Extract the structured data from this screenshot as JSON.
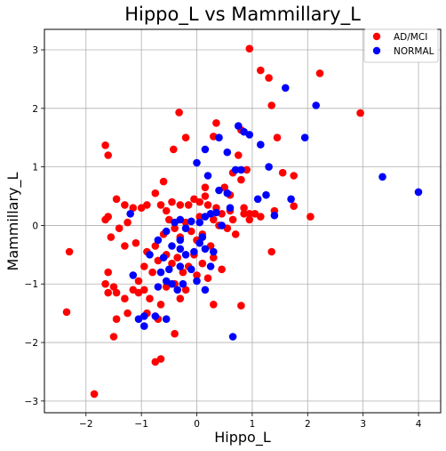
{
  "chart_data": {
    "type": "scatter",
    "title": "Hippo_L vs Mammillary_L",
    "xlabel": "Hippo_L",
    "ylabel": "Mammillary_L",
    "xlim": [
      -2.75,
      4.4
    ],
    "ylim": [
      -3.2,
      3.35
    ],
    "xticks": [
      -2,
      -1,
      0,
      1,
      2,
      3,
      4
    ],
    "yticks": [
      -3,
      -2,
      -1,
      0,
      1,
      2,
      3
    ],
    "grid": true,
    "legend_position": "top-right",
    "series": [
      {
        "name": "AD/MCI",
        "color": "#ff0000",
        "points": [
          [
            0.95,
            3.02
          ],
          [
            1.15,
            2.65
          ],
          [
            1.3,
            2.52
          ],
          [
            2.22,
            2.6
          ],
          [
            1.35,
            2.05
          ],
          [
            2.95,
            1.92
          ],
          [
            -0.32,
            1.93
          ],
          [
            0.35,
            1.75
          ],
          [
            -0.2,
            1.5
          ],
          [
            0.8,
            1.63
          ],
          [
            1.45,
            1.5
          ],
          [
            -1.65,
            1.37
          ],
          [
            -0.42,
            1.3
          ],
          [
            -1.6,
            1.2
          ],
          [
            0.3,
            1.52
          ],
          [
            0.65,
            0.9
          ],
          [
            1.55,
            0.9
          ],
          [
            1.75,
            0.85
          ],
          [
            0.9,
            0.95
          ],
          [
            0.75,
            1.2
          ],
          [
            -0.6,
            0.75
          ],
          [
            0.5,
            0.65
          ],
          [
            0.8,
            0.78
          ],
          [
            0.6,
            0.52
          ],
          [
            0.15,
            0.65
          ],
          [
            0.05,
            0.4
          ],
          [
            -0.05,
            0.45
          ],
          [
            0.15,
            0.5
          ],
          [
            0.2,
            0.35
          ],
          [
            0.35,
            0.3
          ],
          [
            0.45,
            0.2
          ],
          [
            0.6,
            0.25
          ],
          [
            0.85,
            0.3
          ],
          [
            0.95,
            0.2
          ],
          [
            1.05,
            0.2
          ],
          [
            1.15,
            0.15
          ],
          [
            1.4,
            0.25
          ],
          [
            1.75,
            0.33
          ],
          [
            2.05,
            0.15
          ],
          [
            0.95,
            0.1
          ],
          [
            0.3,
            0.1
          ],
          [
            0.05,
            0.15
          ],
          [
            -0.15,
            0.35
          ],
          [
            -0.3,
            0.35
          ],
          [
            -0.45,
            0.4
          ],
          [
            -0.55,
            0.25
          ],
          [
            -0.65,
            0.35
          ],
          [
            -0.75,
            0.55
          ],
          [
            -0.9,
            0.35
          ],
          [
            -1.0,
            0.3
          ],
          [
            -1.15,
            0.3
          ],
          [
            -1.3,
            0.35
          ],
          [
            -1.45,
            0.45
          ],
          [
            -1.6,
            0.15
          ],
          [
            -1.65,
            0.1
          ],
          [
            -1.4,
            -0.05
          ],
          [
            -1.25,
            0.05
          ],
          [
            -1.55,
            -0.2
          ],
          [
            -1.3,
            -0.35
          ],
          [
            -2.3,
            -0.45
          ],
          [
            -1.1,
            -0.3
          ],
          [
            -0.9,
            -0.45
          ],
          [
            -0.75,
            -0.35
          ],
          [
            -0.6,
            -0.15
          ],
          [
            -0.5,
            0.1
          ],
          [
            -0.4,
            -0.05
          ],
          [
            -0.3,
            -0.2
          ],
          [
            -0.2,
            0.05
          ],
          [
            -0.1,
            -0.1
          ],
          [
            0.0,
            -0.25
          ],
          [
            0.1,
            -0.15
          ],
          [
            0.25,
            -0.35
          ],
          [
            0.4,
            0.0
          ],
          [
            0.55,
            -0.05
          ],
          [
            0.65,
            0.1
          ],
          [
            0.7,
            -0.15
          ],
          [
            0.85,
            0.2
          ],
          [
            1.35,
            -0.45
          ],
          [
            -0.55,
            -0.5
          ],
          [
            -0.45,
            -0.65
          ],
          [
            -0.35,
            -0.55
          ],
          [
            -0.25,
            -0.8
          ],
          [
            -0.15,
            -0.7
          ],
          [
            -0.05,
            -0.5
          ],
          [
            0.1,
            -0.65
          ],
          [
            0.2,
            -0.9
          ],
          [
            0.3,
            -0.55
          ],
          [
            -0.7,
            -0.6
          ],
          [
            -0.8,
            -0.8
          ],
          [
            -0.95,
            -0.7
          ],
          [
            -1.05,
            -0.95
          ],
          [
            -1.15,
            -1.1
          ],
          [
            -1.3,
            -1.25
          ],
          [
            -1.5,
            -1.05
          ],
          [
            -1.6,
            -0.8
          ],
          [
            -1.65,
            -1.0
          ],
          [
            -1.45,
            -1.15
          ],
          [
            -0.95,
            -1.1
          ],
          [
            -0.85,
            -1.25
          ],
          [
            -1.05,
            -1.15
          ],
          [
            -0.65,
            -1.35
          ],
          [
            -0.55,
            -1.05
          ],
          [
            -0.4,
            -1.0
          ],
          [
            -0.3,
            -1.25
          ],
          [
            -0.2,
            -1.1
          ],
          [
            0.0,
            -0.85
          ],
          [
            0.45,
            -0.75
          ],
          [
            0.3,
            -1.35
          ],
          [
            -1.45,
            -1.6
          ],
          [
            -1.6,
            -1.15
          ],
          [
            -2.35,
            -1.48
          ],
          [
            -1.25,
            -1.5
          ],
          [
            -0.9,
            -1.5
          ],
          [
            -0.7,
            -1.6
          ],
          [
            -0.4,
            -1.85
          ],
          [
            -1.5,
            -1.9
          ],
          [
            0.8,
            -1.37
          ],
          [
            -0.65,
            -2.28
          ],
          [
            -0.75,
            -2.33
          ],
          [
            -1.85,
            -2.88
          ]
        ]
      },
      {
        "name": "NORMAL",
        "color": "#0000ff",
        "points": [
          [
            1.6,
            2.35
          ],
          [
            2.15,
            2.05
          ],
          [
            0.75,
            1.7
          ],
          [
            0.85,
            1.6
          ],
          [
            0.95,
            1.55
          ],
          [
            0.4,
            1.5
          ],
          [
            1.95,
            1.5
          ],
          [
            0.15,
            1.3
          ],
          [
            1.15,
            1.38
          ],
          [
            0.55,
            1.25
          ],
          [
            1.3,
            1.0
          ],
          [
            0.0,
            1.07
          ],
          [
            0.8,
            0.95
          ],
          [
            0.2,
            0.85
          ],
          [
            0.7,
            0.95
          ],
          [
            3.35,
            0.83
          ],
          [
            4.0,
            0.57
          ],
          [
            0.4,
            0.6
          ],
          [
            0.55,
            0.55
          ],
          [
            1.1,
            0.45
          ],
          [
            1.7,
            0.45
          ],
          [
            1.25,
            0.52
          ],
          [
            0.6,
            0.3
          ],
          [
            0.35,
            0.22
          ],
          [
            0.25,
            0.2
          ],
          [
            -0.3,
            0.1
          ],
          [
            0.15,
            0.15
          ],
          [
            0.05,
            0.05
          ],
          [
            -0.1,
            0.07
          ],
          [
            -1.2,
            0.2
          ],
          [
            0.45,
            0.0
          ],
          [
            -0.4,
            0.05
          ],
          [
            -0.2,
            -0.05
          ],
          [
            1.4,
            0.17
          ],
          [
            -0.55,
            -0.1
          ],
          [
            -0.7,
            -0.25
          ],
          [
            -0.45,
            -0.35
          ],
          [
            -0.3,
            -0.4
          ],
          [
            -0.2,
            -0.5
          ],
          [
            -0.05,
            -0.45
          ],
          [
            0.1,
            -0.2
          ],
          [
            0.3,
            -0.45
          ],
          [
            -0.85,
            -0.5
          ],
          [
            -0.6,
            -0.55
          ],
          [
            -0.5,
            -0.75
          ],
          [
            -0.65,
            -0.8
          ],
          [
            -0.3,
            -0.7
          ],
          [
            -0.1,
            -0.75
          ],
          [
            0.25,
            -0.7
          ],
          [
            -0.55,
            -0.95
          ],
          [
            -0.7,
            -1.05
          ],
          [
            -0.45,
            -1.0
          ],
          [
            -0.25,
            -1.0
          ],
          [
            0.0,
            -0.95
          ],
          [
            0.15,
            -1.1
          ],
          [
            -1.15,
            -0.85
          ],
          [
            -0.35,
            -1.1
          ],
          [
            -0.95,
            -1.55
          ],
          [
            -1.05,
            -1.6
          ],
          [
            -0.75,
            -1.55
          ],
          [
            -0.55,
            -1.6
          ],
          [
            -0.95,
            -1.72
          ],
          [
            0.65,
            -1.9
          ],
          [
            -0.3,
            -0.25
          ],
          [
            0.15,
            -0.4
          ],
          [
            0.05,
            -0.3
          ]
        ]
      }
    ]
  }
}
